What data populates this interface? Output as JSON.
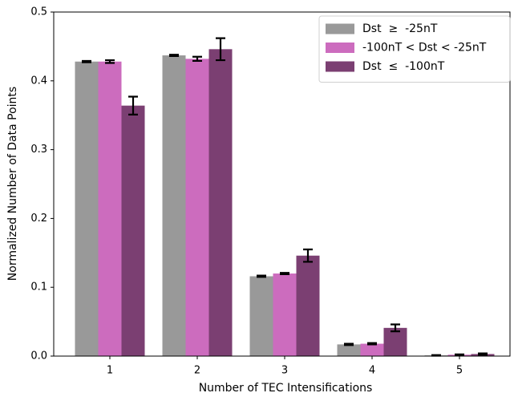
{
  "chart_data": {
    "type": "bar",
    "x_label": "Number of TEC Intensifications",
    "y_label": "Normalized Number of Data Points",
    "categories": [
      "1",
      "2",
      "3",
      "4",
      "5"
    ],
    "series": [
      {
        "name": "Dst  ≥  -25nT",
        "color": "#999999",
        "values": [
          0.428,
          0.437,
          0.116,
          0.017,
          0.001
        ],
        "errors": [
          0.001,
          0.001,
          0.001,
          0.001,
          0.0005
        ]
      },
      {
        "name": "-100nT < Dst < -25nT",
        "color": "#cc6cbe",
        "values": [
          0.428,
          0.432,
          0.12,
          0.018,
          0.002
        ],
        "errors": [
          0.002,
          0.003,
          0.001,
          0.001,
          0.0005
        ]
      },
      {
        "name": "Dst  ≤  -100nT",
        "color": "#7b3f72",
        "values": [
          0.364,
          0.446,
          0.146,
          0.041,
          0.003
        ],
        "errors": [
          0.013,
          0.016,
          0.009,
          0.005,
          0.001
        ]
      }
    ],
    "ylim": [
      0,
      0.5
    ],
    "yticks": [
      {
        "value": 0,
        "label": "0.0"
      },
      0.1,
      0.2,
      0.3,
      0.4,
      0.5
    ],
    "grid": false,
    "legend": "upper right"
  }
}
